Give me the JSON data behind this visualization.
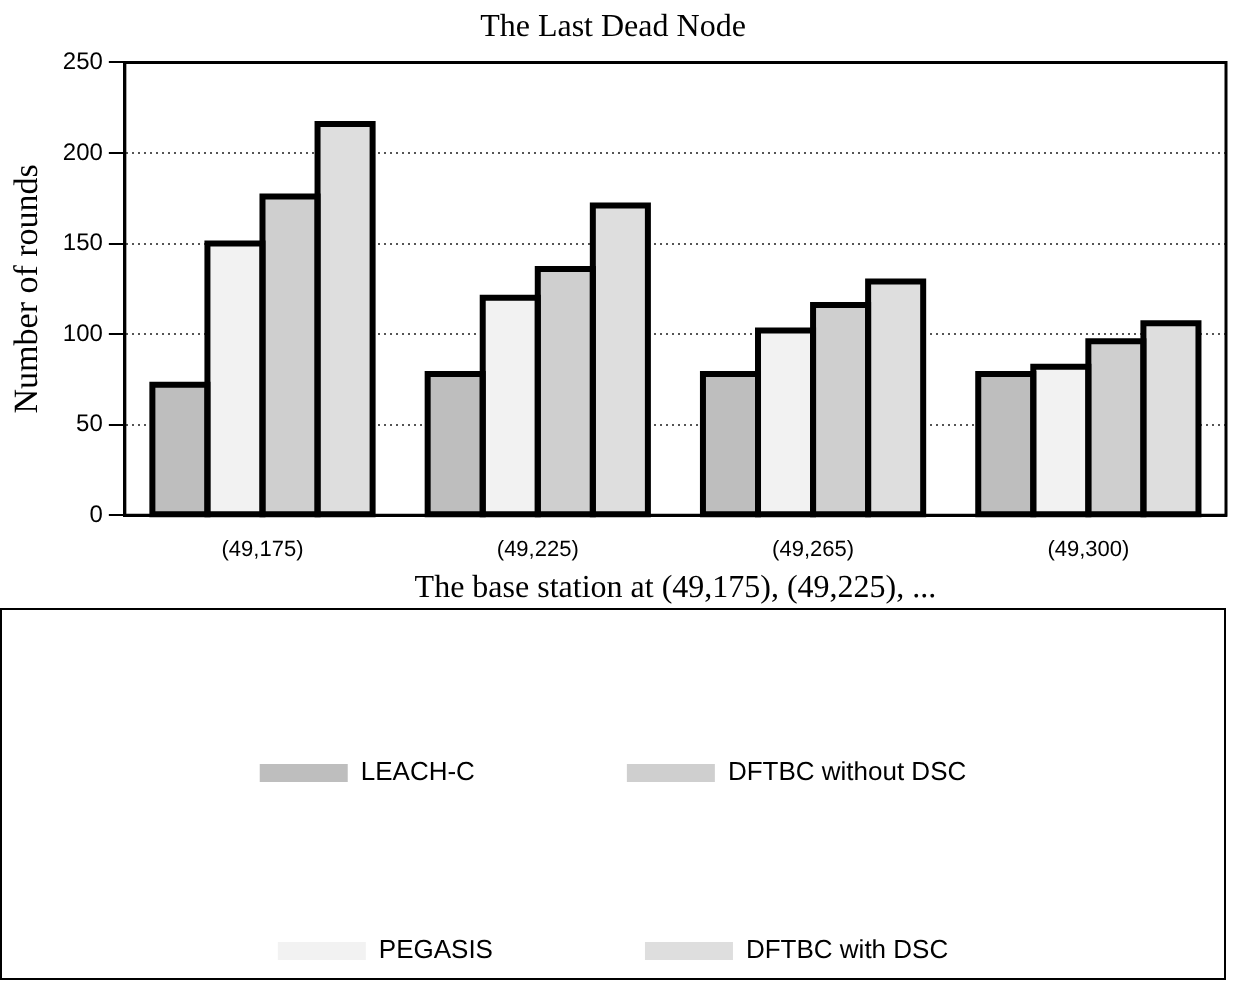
{
  "chart_data": {
    "type": "bar",
    "title": "The Last Dead Node",
    "xlabel": "The base station at (49,175), (49,225), ...",
    "ylabel": "Number of rounds",
    "categories": [
      "(49,175)",
      "(49,225)",
      "(49,265)",
      "(49,300)"
    ],
    "series": [
      {
        "name": "LEACH-C",
        "color": "#bebebe",
        "values": [
          72,
          78,
          78,
          78
        ]
      },
      {
        "name": "PEGASIS",
        "color": "#f2f2f2",
        "values": [
          150,
          120,
          102,
          82
        ]
      },
      {
        "name": "DFTBC without DSC",
        "color": "#cfcfcf",
        "values": [
          176,
          136,
          116,
          96
        ]
      },
      {
        "name": "DFTBC with DSC",
        "color": "#dedede",
        "values": [
          216,
          171,
          129,
          106
        ]
      }
    ],
    "ylim": [
      0,
      250
    ],
    "yticks": [
      0,
      50,
      100,
      150,
      200,
      250
    ],
    "grid": "y",
    "legend": "bottom"
  }
}
